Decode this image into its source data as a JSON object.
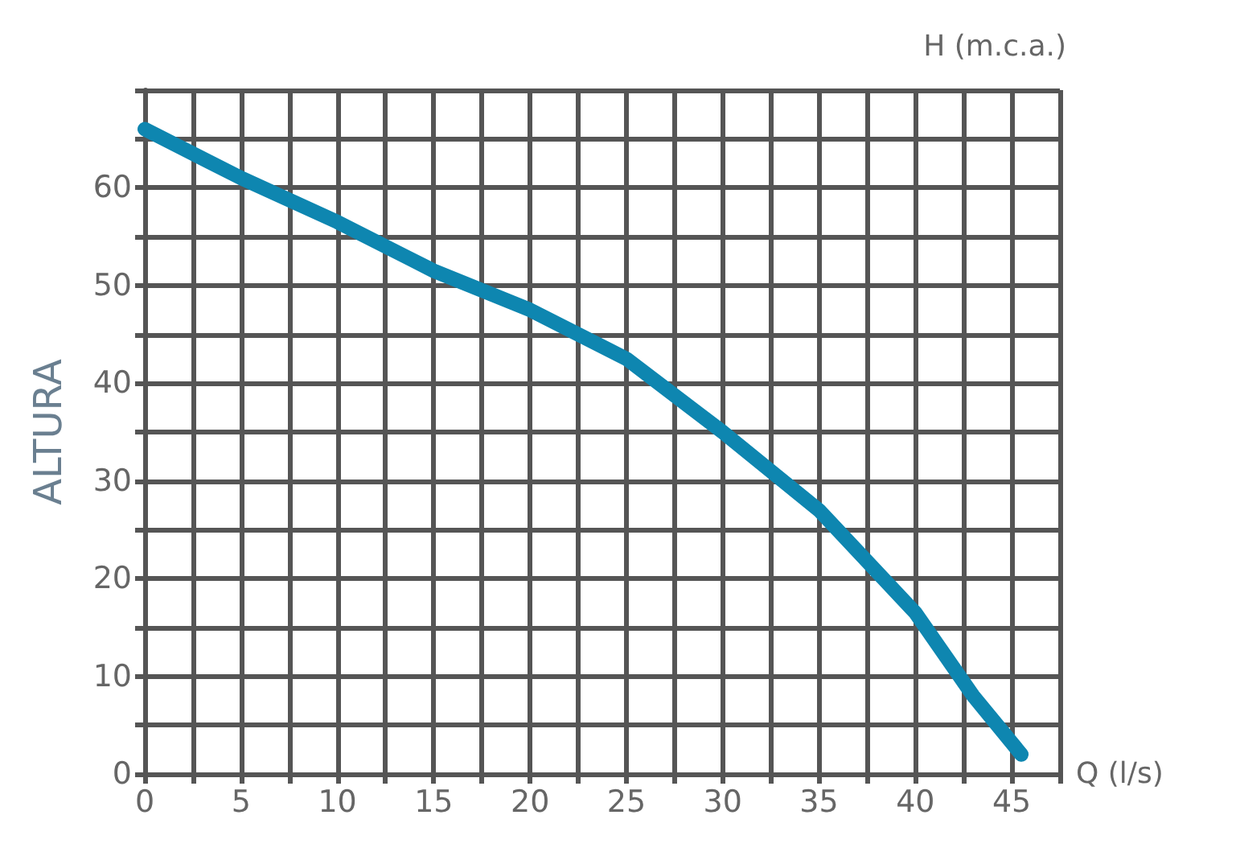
{
  "chart_data": {
    "type": "line",
    "xlabel": "Q (l/s)",
    "ylabel": "ALTURA",
    "annotations": [
      "H (m.c.a.)"
    ],
    "x": [
      0,
      5,
      10,
      15,
      20,
      25,
      30,
      35,
      40,
      43,
      45.5
    ],
    "series": [
      {
        "color": "#0e86b0",
        "values": [
          66,
          61,
          56.5,
          51.5,
          47.5,
          42.5,
          35,
          27,
          16.5,
          8,
          2
        ]
      }
    ],
    "xlim": [
      0,
      47.5
    ],
    "ylim": [
      0,
      70
    ],
    "xticks": [
      0,
      {
        "value": 2.5,
        "label": null
      },
      5,
      {
        "value": 7.5,
        "label": null
      },
      10,
      {
        "value": 12.5,
        "label": null
      },
      15,
      {
        "value": 17.5,
        "label": null
      },
      20,
      {
        "value": 22.5,
        "label": null
      },
      25,
      {
        "value": 27.5,
        "label": null
      },
      30,
      {
        "value": 32.5,
        "label": null
      },
      35,
      {
        "value": 37.5,
        "label": null
      },
      40,
      {
        "value": 42.5,
        "label": null
      },
      45,
      {
        "value": 47.5,
        "label": null
      }
    ],
    "yticks": [
      0,
      {
        "value": 5,
        "label": null
      },
      10,
      {
        "value": 15,
        "label": null
      },
      20,
      {
        "value": 25,
        "label": null
      },
      30,
      {
        "value": 35,
        "label": null
      },
      40,
      {
        "value": 45,
        "label": null
      },
      50,
      {
        "value": 55,
        "label": null
      },
      60,
      {
        "value": 65,
        "label": null
      },
      {
        "value": 70,
        "label": null
      }
    ],
    "grid": true,
    "line_style": "solid"
  }
}
